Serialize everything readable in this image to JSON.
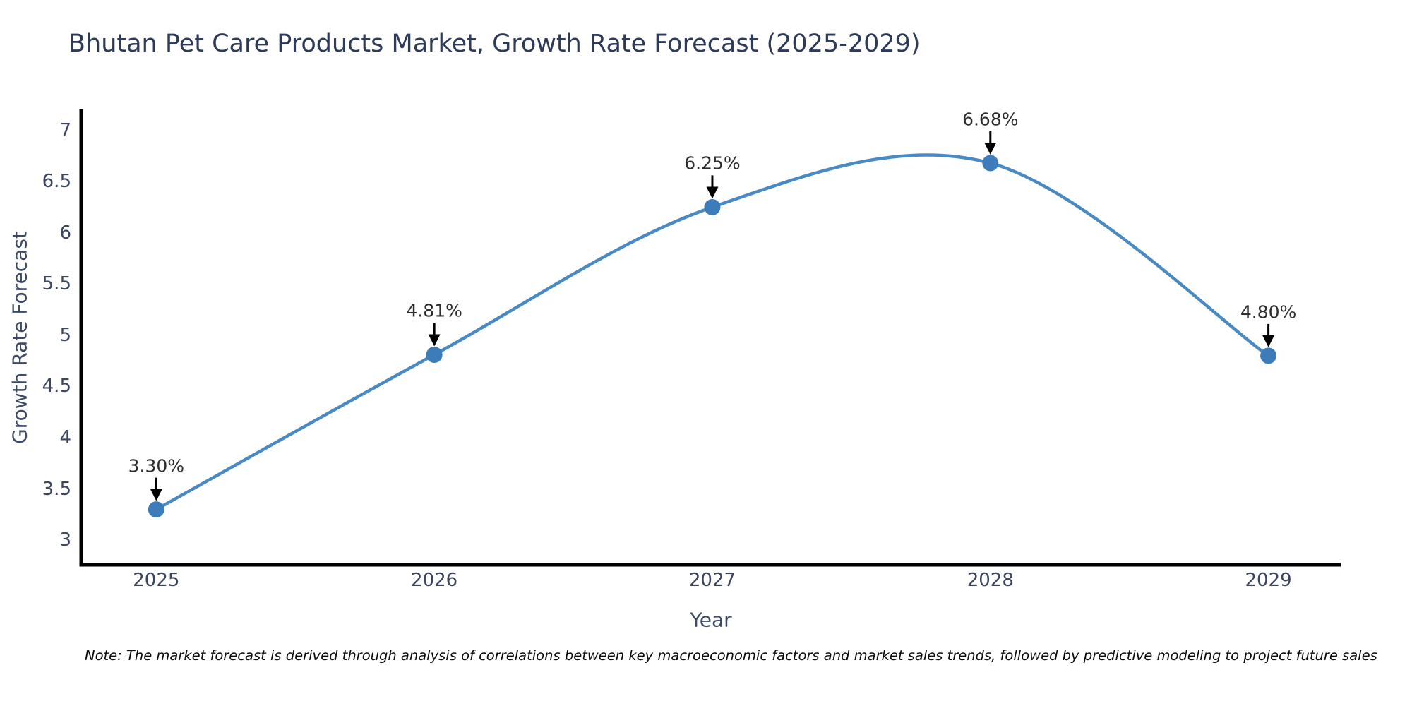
{
  "page": {
    "background": "#ffffff"
  },
  "chart_data": {
    "type": "line",
    "title": "Bhutan Pet Care Products Market, Growth Rate Forecast (2025-2029)",
    "xlabel": "Year",
    "ylabel": "Growth Rate Forecast",
    "x": [
      2025,
      2026,
      2027,
      2028,
      2029
    ],
    "series": [
      {
        "name": "Growth Rate Forecast",
        "values": [
          3.3,
          4.81,
          6.25,
          6.68,
          4.8
        ]
      }
    ],
    "point_labels": [
      "3.30%",
      "4.81%",
      "6.25%",
      "6.68%",
      "4.80%"
    ],
    "xtick_labels": [
      "2025",
      "2026",
      "2027",
      "2028",
      "2029"
    ],
    "ytick_values": [
      3,
      3.5,
      4,
      4.5,
      5,
      5.5,
      6,
      6.5,
      7
    ],
    "ytick_labels": [
      "3",
      "3.5",
      "4",
      "4.5",
      "5",
      "5.5",
      "6",
      "6.5",
      "7"
    ],
    "xlim": [
      2024.73,
      2029.26
    ],
    "ylim": [
      2.76,
      7.19
    ],
    "grid": false,
    "legend": "none",
    "line_shape": "spline",
    "annotations_have_arrows": true,
    "colors": {
      "line": "#4a8ac4",
      "marker": "#3c7cba",
      "axis_spine": "#000000",
      "arrow": "#000000",
      "title_text": "#2e3a59",
      "tick_text": "#3b4560"
    }
  },
  "note": {
    "text": "Note: The market forecast is derived through analysis of correlations between key macroeconomic factors and market sales trends, followed by predictive modeling to project future sales"
  }
}
